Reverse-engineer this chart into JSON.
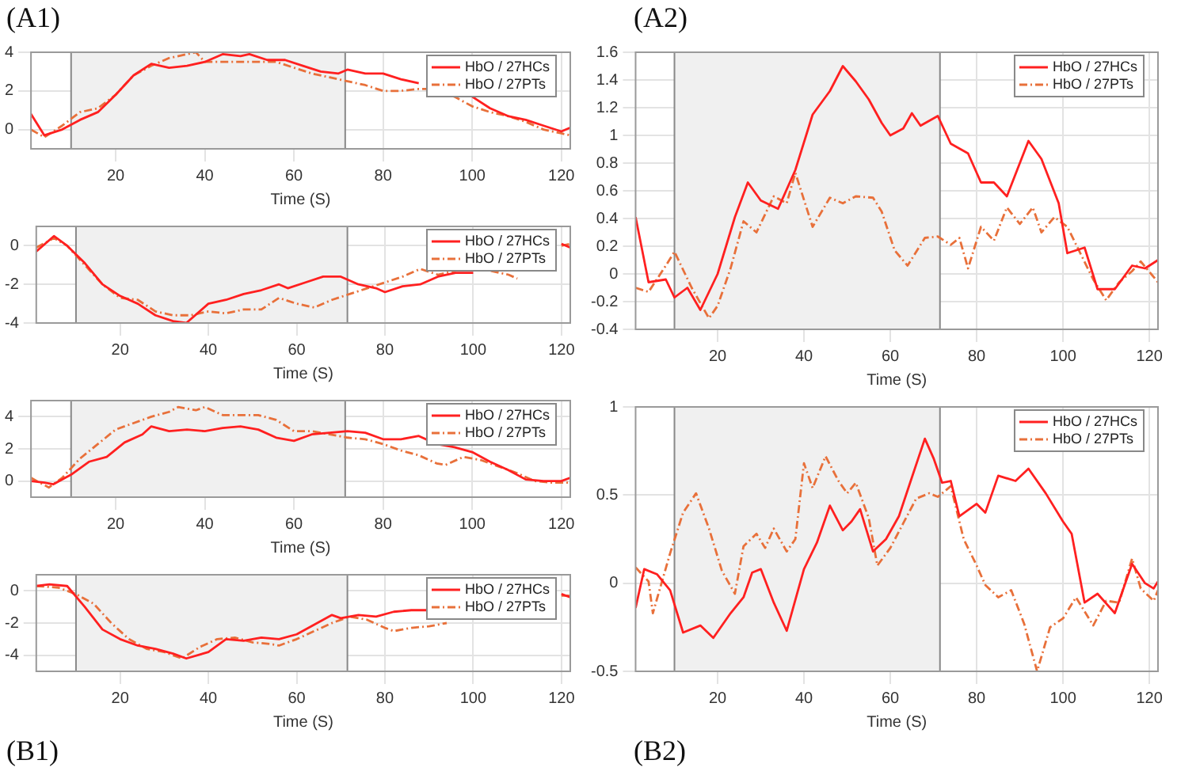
{
  "chart_data": [
    {
      "type": "line",
      "xlabel": "Time (S)",
      "annotations": [
        "(A1)"
      ],
      "xlim": [
        1,
        122
      ],
      "xticks": [
        20,
        40,
        60,
        80,
        100,
        120
      ],
      "ylim": [
        -1,
        4
      ],
      "yticks": [
        0,
        2,
        4
      ],
      "grid": true,
      "legend": "top right",
      "marker": "none",
      "bands": [
        {
          "axis": "x",
          "from": 10,
          "to": 71.5,
          "color": "#f0f0f0"
        }
      ],
      "series": [
        {
          "name": "HbO / 27HCs",
          "color": "#ff2020",
          "line_style": "solid",
          "x": [
            1,
            4,
            8,
            12,
            16,
            20,
            24,
            28,
            32,
            36,
            40,
            44,
            48,
            50,
            54,
            58,
            62,
            66,
            70,
            72,
            76,
            80,
            84,
            88,
            92,
            96,
            100,
            104,
            108,
            112,
            116,
            120,
            122
          ],
          "values": [
            0.8,
            -0.3,
            0,
            0.5,
            0.9,
            1.8,
            2.8,
            3.4,
            3.2,
            3.3,
            3.5,
            3.9,
            3.8,
            3.9,
            3.6,
            3.6,
            3.3,
            3.0,
            2.9,
            3.1,
            2.9,
            2.9,
            2.6,
            2.4,
            null,
            null,
            1.7,
            1.1,
            0.7,
            0.5,
            0.2,
            -0.1,
            0.1
          ]
        },
        {
          "name": "HbO / 27PTs",
          "color": "#e8703a",
          "line_style": "dashed",
          "x": [
            1,
            4,
            8,
            12,
            16,
            20,
            24,
            28,
            32,
            36,
            38,
            40,
            44,
            48,
            52,
            56,
            60,
            64,
            68,
            72,
            76,
            80,
            84,
            88,
            92,
            96,
            100,
            104,
            108,
            112,
            116,
            120,
            122
          ],
          "values": [
            0,
            -0.4,
            0.2,
            0.9,
            1.1,
            1.8,
            2.8,
            3.3,
            3.7,
            3.9,
            4.0,
            3.5,
            3.5,
            3.5,
            3.5,
            3.5,
            3.2,
            2.9,
            2.7,
            2.5,
            2.3,
            2.0,
            2.0,
            2.1,
            2.1,
            1.7,
            1.2,
            0.9,
            0.7,
            0.4,
            0.0,
            -0.2,
            -0.3
          ]
        }
      ]
    },
    {
      "type": "line",
      "xlabel": "Time (S)",
      "xlim": [
        1,
        122
      ],
      "xticks": [
        20,
        40,
        60,
        80,
        100,
        120
      ],
      "ylim": [
        -4,
        1
      ],
      "yticks": [
        -4,
        -2,
        0
      ],
      "grid": true,
      "legend": "top right",
      "marker": "none",
      "bands": [
        {
          "axis": "x",
          "from": 10,
          "to": 71.5,
          "color": "#f0f0f0"
        }
      ],
      "series": [
        {
          "name": "HbO / 27HCs",
          "color": "#ff2020",
          "line_style": "solid",
          "x": [
            1,
            5,
            8,
            12,
            16,
            20,
            24,
            28,
            32,
            35,
            40,
            44,
            48,
            52,
            56,
            58,
            62,
            66,
            70,
            74,
            78,
            80,
            84,
            88,
            92,
            96,
            100,
            104,
            108,
            112,
            116,
            120,
            122
          ],
          "values": [
            -0.3,
            0.5,
            0,
            -0.9,
            -2.0,
            -2.6,
            -3.0,
            -3.6,
            -3.9,
            -4.0,
            -3.0,
            -2.8,
            -2.5,
            -2.3,
            -2.0,
            -2.2,
            -1.9,
            -1.6,
            -1.6,
            -2.0,
            -2.2,
            -2.4,
            -2.1,
            -2.0,
            -1.6,
            -1.4,
            -1.4,
            null,
            null,
            null,
            null,
            0.1,
            -0.1
          ]
        },
        {
          "name": "HbO / 27PTs",
          "color": "#e8703a",
          "line_style": "dashed",
          "x": [
            1,
            5,
            8,
            12,
            16,
            20,
            24,
            28,
            32,
            36,
            40,
            44,
            48,
            52,
            56,
            60,
            64,
            68,
            72,
            76,
            80,
            84,
            88,
            92,
            96,
            100,
            104,
            108,
            110,
            114,
            120,
            122
          ],
          "values": [
            -0.1,
            0.4,
            0,
            -1.0,
            -2.0,
            -2.7,
            -2.8,
            -3.4,
            -3.6,
            -3.6,
            -3.4,
            -3.5,
            -3.3,
            -3.3,
            -2.7,
            -3.0,
            -3.2,
            -2.8,
            -2.5,
            -2.2,
            -1.9,
            -1.6,
            -1.2,
            -1.5,
            -1.3,
            null,
            -1.3,
            -1.5,
            -1.7,
            null,
            0,
            0.1
          ]
        }
      ]
    },
    {
      "type": "line",
      "xlabel": "Time (S)",
      "xlim": [
        1,
        122
      ],
      "xticks": [
        20,
        40,
        60,
        80,
        100,
        120
      ],
      "ylim": [
        -1,
        5
      ],
      "yticks": [
        0,
        2,
        4
      ],
      "grid": true,
      "legend": "top right",
      "marker": "none",
      "bands": [
        {
          "axis": "x",
          "from": 10,
          "to": 71.5,
          "color": "#f0f0f0"
        }
      ],
      "series": [
        {
          "name": "HbO / 27HCs",
          "color": "#ff2020",
          "line_style": "solid",
          "x": [
            1,
            4,
            6,
            10,
            14,
            18,
            22,
            26,
            28,
            32,
            36,
            40,
            44,
            48,
            52,
            56,
            60,
            64,
            68,
            72,
            76,
            80,
            84,
            88,
            92,
            96,
            100,
            104,
            108,
            112,
            116,
            120,
            122
          ],
          "values": [
            0,
            -0.1,
            -0.2,
            0.4,
            1.2,
            1.5,
            2.4,
            2.9,
            3.4,
            3.1,
            3.2,
            3.1,
            3.3,
            3.4,
            3.2,
            2.7,
            2.5,
            2.9,
            3.0,
            3.1,
            3.0,
            2.6,
            2.6,
            2.8,
            2.3,
            2.1,
            1.8,
            1.2,
            0.7,
            0.1,
            0.0,
            0.0,
            0.2
          ]
        },
        {
          "name": "HbO / 27PTs",
          "color": "#e8703a",
          "line_style": "dashed",
          "x": [
            1,
            5,
            8,
            12,
            16,
            20,
            24,
            28,
            32,
            34,
            38,
            40,
            44,
            48,
            52,
            56,
            60,
            64,
            68,
            72,
            76,
            80,
            84,
            88,
            92,
            94,
            98,
            102,
            106,
            110,
            114,
            118,
            122
          ],
          "values": [
            0.2,
            -0.4,
            0.2,
            1.4,
            2.3,
            3.2,
            3.6,
            4.0,
            4.3,
            4.6,
            4.4,
            4.6,
            4.1,
            4.1,
            4.1,
            3.8,
            3.1,
            3.1,
            2.9,
            2.7,
            2.6,
            2.3,
            1.9,
            1.6,
            1.1,
            1.0,
            1.5,
            1.3,
            0.9,
            0.5,
            0.0,
            -0.1,
            -0.1
          ]
        }
      ]
    },
    {
      "type": "line",
      "xlabel": "Time (S)",
      "annotations": [
        "(B1)"
      ],
      "xlim": [
        1,
        122
      ],
      "xticks": [
        20,
        40,
        60,
        80,
        100,
        120
      ],
      "ylim": [
        -5,
        1
      ],
      "yticks": [
        -4,
        -2,
        0
      ],
      "grid": true,
      "legend": "top right",
      "marker": "none",
      "bands": [
        {
          "axis": "x",
          "from": 10,
          "to": 71.5,
          "color": "#f0f0f0"
        }
      ],
      "series": [
        {
          "name": "HbO / 27HCs",
          "color": "#ff2020",
          "line_style": "solid",
          "x": [
            1,
            4,
            8,
            12,
            16,
            20,
            24,
            28,
            32,
            35,
            40,
            44,
            48,
            52,
            56,
            60,
            64,
            68,
            70,
            74,
            78,
            82,
            86,
            90,
            94,
            98,
            102,
            106,
            110,
            114,
            120,
            122
          ],
          "values": [
            0.3,
            0.4,
            0.3,
            -1.0,
            -2.4,
            -3.0,
            -3.4,
            -3.6,
            -3.9,
            -4.2,
            -3.8,
            -3.0,
            -3.1,
            -2.9,
            -3.0,
            -2.7,
            -2.1,
            -1.5,
            -1.7,
            -1.5,
            -1.6,
            -1.3,
            -1.2,
            -1.2,
            null,
            null,
            null,
            null,
            null,
            null,
            -0.2,
            -0.4
          ]
        },
        {
          "name": "HbO / 27PTs",
          "color": "#e8703a",
          "line_style": "dashed",
          "x": [
            1,
            6,
            10,
            14,
            18,
            22,
            26,
            30,
            34,
            38,
            42,
            46,
            50,
            54,
            56,
            60,
            64,
            68,
            72,
            76,
            80,
            82,
            86,
            90,
            94,
            98,
            102,
            106,
            110,
            114,
            120,
            122
          ],
          "values": [
            0.3,
            0.2,
            -0.2,
            -0.8,
            -2.0,
            -3.0,
            -3.6,
            -3.8,
            -4.2,
            -3.5,
            -3.0,
            -2.9,
            -3.2,
            -3.3,
            -3.4,
            -3.0,
            -2.5,
            -2.0,
            -1.6,
            -1.8,
            -2.3,
            -2.5,
            -2.3,
            -2.2,
            -2.0,
            null,
            null,
            null,
            null,
            null,
            -0.3,
            -0.3
          ]
        }
      ]
    },
    {
      "type": "line",
      "xlabel": "Time (S)",
      "annotations": [
        "(A2)"
      ],
      "xlim": [
        1,
        122
      ],
      "xticks": [
        20,
        40,
        60,
        80,
        100,
        120
      ],
      "ylim": [
        -0.4,
        1.6
      ],
      "yticks": [
        -0.4,
        -0.2,
        0,
        0.2,
        0.4,
        0.6,
        0.8,
        1,
        1.2,
        1.4,
        1.6
      ],
      "grid": true,
      "legend": "top right",
      "marker": "none",
      "bands": [
        {
          "axis": "x",
          "from": 10,
          "to": 71.5,
          "color": "#f0f0f0"
        }
      ],
      "series": [
        {
          "name": "HbO / 27HCs",
          "color": "#ff2020",
          "line_style": "solid",
          "x": [
            1,
            4,
            8,
            10,
            13,
            16,
            20,
            24,
            27,
            30,
            34,
            38,
            42,
            46,
            49,
            52,
            55,
            58,
            60,
            63,
            65,
            67,
            71,
            74,
            78,
            81,
            84,
            87,
            92,
            95,
            99,
            101,
            105,
            108,
            112,
            116,
            119,
            122
          ],
          "values": [
            0.41,
            -0.06,
            -0.04,
            -0.17,
            -0.1,
            -0.26,
            0.0,
            0.41,
            0.66,
            0.53,
            0.47,
            0.75,
            1.15,
            1.32,
            1.5,
            1.39,
            1.26,
            1.09,
            1.0,
            1.05,
            1.16,
            1.07,
            1.14,
            0.94,
            0.87,
            0.66,
            0.66,
            0.56,
            0.96,
            0.83,
            0.51,
            0.15,
            0.19,
            -0.11,
            -0.11,
            0.06,
            0.04,
            0.1
          ]
        },
        {
          "name": "HbO / 27PTs",
          "color": "#e8703a",
          "line_style": "dashed",
          "x": [
            1,
            4,
            8,
            10,
            14,
            18,
            20,
            23,
            26,
            29,
            33,
            36,
            38,
            42,
            46,
            49,
            52,
            56,
            58,
            61,
            64,
            68,
            71,
            74,
            76,
            78,
            81,
            84,
            87,
            90,
            93,
            95,
            98,
            101,
            104,
            107,
            110,
            113,
            116,
            118,
            122
          ],
          "values": [
            -0.1,
            -0.13,
            0.06,
            0.16,
            -0.1,
            -0.32,
            -0.23,
            0.04,
            0.38,
            0.3,
            0.56,
            0.51,
            0.73,
            0.34,
            0.55,
            0.51,
            0.56,
            0.55,
            0.45,
            0.17,
            0.06,
            0.26,
            0.27,
            0.21,
            0.26,
            0.04,
            0.34,
            0.24,
            0.48,
            0.36,
            0.48,
            0.3,
            0.41,
            0.34,
            0.15,
            -0.04,
            -0.19,
            -0.06,
            0.02,
            0.09,
            -0.06
          ]
        }
      ]
    },
    {
      "type": "line",
      "xlabel": "Time (S)",
      "annotations": [
        "(B2)"
      ],
      "xlim": [
        1,
        122
      ],
      "xticks": [
        20,
        40,
        60,
        80,
        100,
        120
      ],
      "ylim": [
        -0.5,
        1
      ],
      "yticks": [
        -0.5,
        0,
        0.5,
        1
      ],
      "grid": true,
      "legend": "top right",
      "marker": "none",
      "bands": [
        {
          "axis": "x",
          "from": 10,
          "to": 71.5,
          "color": "#f0f0f0"
        }
      ],
      "series": [
        {
          "name": "HbO / 27HCs",
          "color": "#ff2020",
          "line_style": "solid",
          "x": [
            1,
            3,
            6,
            9,
            12,
            16,
            19,
            23,
            26,
            28,
            30,
            33,
            36,
            40,
            43,
            46,
            49,
            51,
            53,
            56,
            59,
            62,
            65,
            68,
            70,
            72,
            74,
            76,
            80,
            82,
            85,
            89,
            92,
            96,
            100,
            102,
            105,
            108,
            112,
            116,
            119,
            121,
            122
          ],
          "values": [
            -0.14,
            0.08,
            0.05,
            -0.04,
            -0.28,
            -0.24,
            -0.31,
            -0.17,
            -0.08,
            0.06,
            0.08,
            -0.11,
            -0.27,
            0.08,
            0.23,
            0.44,
            0.3,
            0.35,
            0.42,
            0.18,
            0.25,
            0.38,
            0.6,
            0.82,
            0.71,
            0.57,
            0.58,
            0.38,
            0.45,
            0.4,
            0.61,
            0.58,
            0.65,
            0.51,
            0.35,
            0.28,
            -0.11,
            -0.06,
            -0.17,
            0.11,
            0,
            -0.03,
            0.01
          ]
        },
        {
          "name": "HbO / 27PTs",
          "color": "#e8703a",
          "line_style": "dashed",
          "x": [
            1,
            4,
            5,
            9,
            12,
            15,
            18,
            21,
            24,
            26,
            29,
            31,
            33,
            36,
            38,
            40,
            42,
            45,
            48,
            50,
            52,
            55,
            57,
            60,
            63,
            66,
            69,
            71,
            74,
            77,
            80,
            82,
            85,
            88,
            91,
            94,
            97,
            100,
            103,
            107,
            110,
            113,
            116,
            118,
            121,
            122
          ],
          "values": [
            0.09,
            0.01,
            -0.17,
            0.17,
            0.4,
            0.51,
            0.31,
            0.07,
            -0.06,
            0.21,
            0.28,
            0.2,
            0.31,
            0.18,
            0.25,
            0.68,
            0.54,
            0.72,
            0.58,
            0.51,
            0.57,
            0.37,
            0.1,
            0.2,
            0.34,
            0.48,
            0.51,
            0.49,
            0.55,
            0.25,
            0.1,
            -0.01,
            -0.08,
            -0.04,
            -0.23,
            -0.5,
            -0.25,
            -0.2,
            -0.08,
            -0.24,
            -0.1,
            -0.11,
            0.14,
            -0.03,
            -0.1,
            -0.04
          ]
        }
      ]
    }
  ]
}
